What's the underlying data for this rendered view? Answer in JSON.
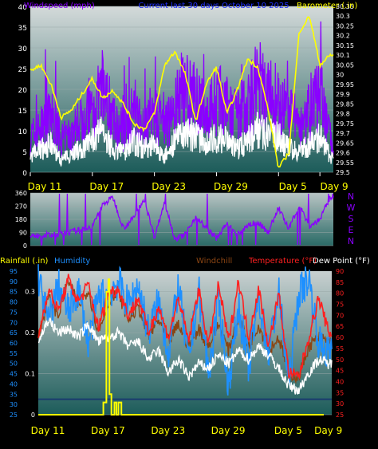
{
  "title": "Current last 30 days October 10 2025",
  "colors": {
    "windspeed": "#8a00ff",
    "gust": "#ffffff",
    "barometer": "#ffff00",
    "direction": "#8a00ff",
    "rainfall": "#ffff00",
    "humidity": "#1e90ff",
    "windchill": "#8b4513",
    "temperature": "#ff2020",
    "dewpoint": "#ffffff",
    "freezing": "#1a3c6e"
  },
  "chart_data": [
    {
      "type": "line",
      "panel": "wind",
      "ylabel_left": "Windspeed (mph)",
      "ylabel_right": "Barometer (.in)",
      "ylim": [
        0,
        40
      ],
      "ylim_right": [
        29.5,
        30.35
      ],
      "yticks": [
        0,
        5,
        10,
        15,
        20,
        25,
        30,
        35,
        40
      ],
      "yticks_right": [
        29.5,
        29.55,
        29.6,
        29.65,
        29.7,
        29.75,
        29.8,
        29.85,
        29.9,
        29.95,
        30.0,
        30.05,
        30.1,
        30.15,
        30.2,
        30.25,
        30.3,
        30.35
      ],
      "yticks_right_labels": [
        "29.5",
        "29.55",
        "29.6",
        "29.65",
        "29.7",
        "29.75",
        "29.8",
        "29.85",
        "29.9",
        "29.95",
        "30",
        "30.05",
        "30.1",
        "30.15",
        "30.2",
        "30.25",
        "30.3",
        "30.35"
      ],
      "x_ticklabels": [
        "Day 11",
        "Day 17",
        "Day 23",
        "Day 29",
        "Day 5",
        "Day 9"
      ],
      "x_tickdays": [
        0,
        6,
        12,
        18,
        24,
        28
      ],
      "x_range_days": [
        0,
        29.3
      ],
      "grid": true,
      "series": [
        {
          "name": "Windspeed",
          "x": [
            0,
            1,
            2,
            3,
            4,
            5,
            6,
            7,
            8,
            9,
            10,
            11,
            12,
            13,
            14,
            15,
            16,
            17,
            18,
            19,
            20,
            21,
            22,
            23,
            24,
            25,
            26,
            27,
            28,
            29
          ],
          "values": [
            10,
            12,
            16,
            9,
            11,
            15,
            18,
            22,
            14,
            12,
            17,
            13,
            16,
            12,
            18,
            24,
            20,
            16,
            21,
            18,
            15,
            19,
            25,
            22,
            20,
            16,
            14,
            18,
            22,
            10
          ]
        },
        {
          "name": "Gust",
          "x": [
            0,
            1,
            2,
            3,
            4,
            5,
            6,
            7,
            8,
            9,
            10,
            11,
            12,
            13,
            14,
            15,
            16,
            17,
            18,
            19,
            20,
            21,
            22,
            23,
            24,
            25,
            26,
            27,
            28,
            29
          ],
          "values": [
            4,
            6,
            7,
            3,
            5,
            6,
            8,
            10,
            6,
            5,
            8,
            6,
            7,
            4,
            8,
            10,
            9,
            7,
            9,
            8,
            6,
            8,
            11,
            10,
            9,
            6,
            5,
            7,
            9,
            4
          ]
        },
        {
          "name": "Barometer",
          "x": [
            0,
            1,
            2,
            3,
            4,
            5,
            6,
            7,
            8,
            9,
            10,
            11,
            12,
            13,
            14,
            15,
            16,
            17,
            18,
            19,
            20,
            21,
            22,
            23,
            24,
            25,
            26,
            27,
            28,
            29
          ],
          "values": [
            30.02,
            30.05,
            29.95,
            29.78,
            29.82,
            29.9,
            29.98,
            29.88,
            29.92,
            29.85,
            29.75,
            29.72,
            29.8,
            30.05,
            30.12,
            30.0,
            29.76,
            29.95,
            30.04,
            29.8,
            29.92,
            30.08,
            30.04,
            29.82,
            29.52,
            29.6,
            30.22,
            30.3,
            30.05,
            30.1
          ]
        }
      ]
    },
    {
      "type": "line",
      "panel": "wind_direction",
      "ylim": [
        0,
        360
      ],
      "yticks": [
        0,
        90,
        180,
        270,
        360
      ],
      "compass_labels": [
        "N",
        "W",
        "S",
        "E",
        "N"
      ],
      "series": [
        {
          "name": "Wind direction",
          "x": [
            0,
            1,
            2,
            3,
            4,
            5,
            6,
            7,
            8,
            9,
            10,
            11,
            12,
            13,
            14,
            15,
            16,
            17,
            18,
            19,
            20,
            21,
            22,
            23,
            24,
            25,
            26,
            27,
            28,
            29
          ],
          "values": [
            60,
            75,
            70,
            80,
            95,
            110,
            130,
            280,
            330,
            120,
            190,
            320,
            60,
            300,
            40,
            80,
            200,
            120,
            50,
            150,
            70,
            140,
            160,
            90,
            260,
            110,
            280,
            130,
            180,
            330
          ]
        }
      ]
    },
    {
      "type": "line",
      "panel": "rain_temp",
      "ylabel_rain": "Rainfall (.in)",
      "ylabel_humidity": "Humidity",
      "ylabel_windchill": "Windchill",
      "ylabel_temp": "Temperature (°F)",
      "ylabel_dew": "Dew Point (°F)",
      "ylim_rain": [
        0,
        0.35
      ],
      "yticks_rain": [
        0,
        0.1,
        0.2,
        0.3
      ],
      "ylim_humidity": [
        25,
        95
      ],
      "yticks_humidity": [
        25,
        30,
        35,
        40,
        45,
        50,
        55,
        60,
        65,
        70,
        75,
        80,
        85,
        90,
        95
      ],
      "ylim_temp": [
        25,
        90
      ],
      "yticks_temp": [
        25,
        30,
        35,
        40,
        45,
        50,
        55,
        60,
        65,
        70,
        75,
        80,
        85,
        90
      ],
      "freezing_line": 32,
      "series": [
        {
          "name": "Rainfall",
          "x": [
            0,
            5,
            6,
            6.5,
            6.8,
            7,
            7.1,
            7.3,
            7.6,
            7.8,
            8.0,
            8.3,
            28.5
          ],
          "values": [
            0,
            0,
            0,
            0.03,
            0.3,
            0.33,
            0.05,
            0,
            0.03,
            0,
            0.03,
            0,
            0
          ]
        },
        {
          "name": "Humidity",
          "x": [
            0,
            1,
            2,
            3,
            4,
            5,
            6,
            7,
            8,
            9,
            10,
            11,
            12,
            13,
            14,
            15,
            16,
            17,
            18,
            19,
            20,
            21,
            22,
            23,
            24,
            25,
            26,
            27,
            28,
            29
          ],
          "values": [
            92,
            70,
            88,
            75,
            86,
            60,
            82,
            84,
            90,
            78,
            88,
            65,
            80,
            55,
            88,
            50,
            86,
            45,
            80,
            40,
            78,
            48,
            82,
            55,
            85,
            40,
            84,
            92,
            60,
            55
          ]
        },
        {
          "name": "Windchill",
          "x": [
            0,
            1,
            2,
            3,
            4,
            5,
            6,
            7,
            8,
            9,
            10,
            11,
            12,
            13,
            14,
            15,
            16,
            17,
            18,
            19,
            20,
            21,
            22,
            23,
            24,
            25,
            26,
            27,
            28,
            29
          ],
          "values": [
            60,
            78,
            70,
            86,
            74,
            82,
            62,
            76,
            80,
            68,
            74,
            60,
            68,
            58,
            66,
            56,
            64,
            56,
            66,
            54,
            70,
            56,
            66,
            54,
            60,
            44,
            42,
            56,
            60,
            58
          ]
        },
        {
          "name": "Temperature",
          "x": [
            0,
            1,
            2,
            3,
            4,
            5,
            6,
            7,
            8,
            9,
            10,
            11,
            12,
            13,
            14,
            15,
            16,
            17,
            18,
            19,
            20,
            21,
            22,
            23,
            24,
            25,
            26,
            27,
            28,
            29
          ],
          "values": [
            60,
            82,
            72,
            86,
            76,
            84,
            64,
            80,
            82,
            70,
            78,
            62,
            74,
            60,
            78,
            58,
            82,
            56,
            84,
            58,
            86,
            60,
            82,
            56,
            80,
            44,
            42,
            60,
            78,
            62
          ]
        },
        {
          "name": "Dew Point",
          "x": [
            0,
            1,
            2,
            3,
            4,
            5,
            6,
            7,
            8,
            9,
            10,
            11,
            12,
            13,
            14,
            15,
            16,
            17,
            18,
            19,
            20,
            21,
            22,
            23,
            24,
            25,
            26,
            27,
            28,
            29
          ],
          "values": [
            58,
            68,
            62,
            64,
            60,
            66,
            58,
            60,
            62,
            56,
            58,
            50,
            54,
            44,
            50,
            42,
            48,
            46,
            52,
            48,
            54,
            50,
            56,
            52,
            46,
            38,
            36,
            44,
            50,
            48
          ]
        }
      ]
    }
  ]
}
